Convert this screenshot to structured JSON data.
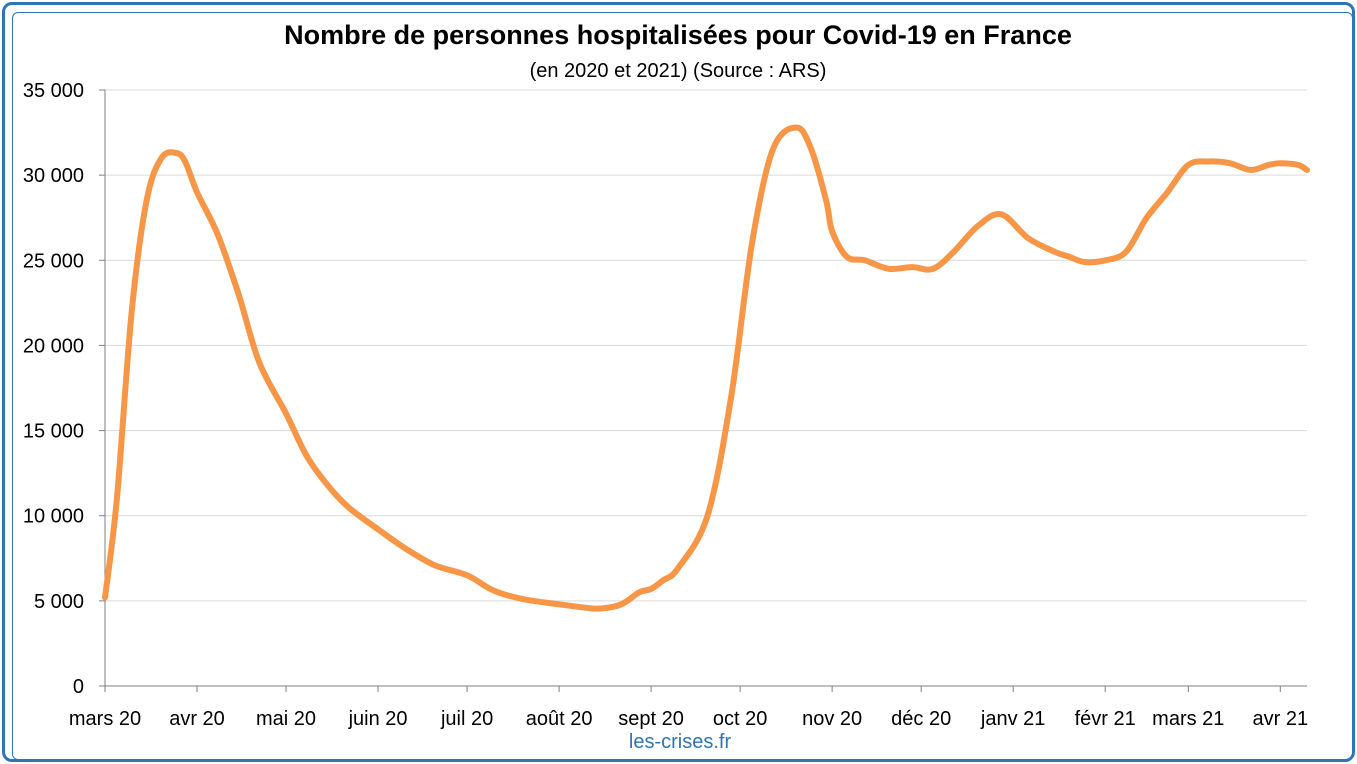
{
  "chart_data": {
    "type": "line",
    "title": "Nombre de personnes hospitalisées pour Covid-19 en France",
    "subtitle": "(en 2020 et 2021) (Source : ARS)",
    "xlabel": "",
    "ylabel": "",
    "ylim": [
      0,
      35000
    ],
    "xlim": [
      "2020-03-01",
      "2021-04-10"
    ],
    "y_ticks": [
      0,
      5000,
      10000,
      15000,
      20000,
      25000,
      30000,
      35000
    ],
    "y_tick_labels": [
      "0",
      "5 000",
      "10 000",
      "15 000",
      "20 000",
      "25 000",
      "30 000",
      "35 000"
    ],
    "x_ticks": [
      "2020-03-01",
      "2020-04-01",
      "2020-05-01",
      "2020-06-01",
      "2020-07-01",
      "2020-08-01",
      "2020-09-01",
      "2020-10-01",
      "2020-11-01",
      "2020-12-01",
      "2021-01-01",
      "2021-02-01",
      "2021-03-01",
      "2021-04-01"
    ],
    "x_tick_labels": [
      "mars 20",
      "avr 20",
      "mai 20",
      "juin 20",
      "juil 20",
      "août 20",
      "sept 20",
      "oct 20",
      "nov 20",
      "déc 20",
      "janv 21",
      "févr 21",
      "mars 21",
      "avr 21"
    ],
    "grid": true,
    "legend": "none",
    "line_color": "#f79646",
    "series": [
      {
        "x": [
          "2020-03-01",
          "2020-03-05",
          "2020-03-10",
          "2020-03-15",
          "2020-03-20",
          "2020-03-25",
          "2020-03-28",
          "2020-04-01",
          "2020-04-08",
          "2020-04-15",
          "2020-04-22",
          "2020-05-01",
          "2020-05-08",
          "2020-05-15",
          "2020-05-22",
          "2020-06-01",
          "2020-06-10",
          "2020-06-20",
          "2020-07-01",
          "2020-07-10",
          "2020-07-20",
          "2020-08-01",
          "2020-08-10",
          "2020-08-15",
          "2020-08-22",
          "2020-08-28",
          "2020-09-01",
          "2020-09-05",
          "2020-09-10",
          "2020-09-20",
          "2020-09-28",
          "2020-10-05",
          "2020-10-12",
          "2020-10-20",
          "2020-10-25",
          "2020-10-30",
          "2020-11-01",
          "2020-11-06",
          "2020-11-12",
          "2020-11-20",
          "2020-11-28",
          "2020-12-05",
          "2020-12-12",
          "2020-12-20",
          "2020-12-28",
          "2021-01-06",
          "2021-01-15",
          "2021-01-20",
          "2021-01-25",
          "2021-02-01",
          "2021-02-08",
          "2021-02-15",
          "2021-02-22",
          "2021-03-01",
          "2021-03-08",
          "2021-03-15",
          "2021-03-22",
          "2021-03-28",
          "2021-04-01",
          "2021-04-07",
          "2021-04-10"
        ],
        "y": [
          5200,
          11000,
          22000,
          28500,
          31000,
          31300,
          30800,
          29000,
          26500,
          23000,
          19000,
          16000,
          13500,
          11800,
          10500,
          9200,
          8100,
          7100,
          6500,
          5600,
          5100,
          4800,
          4600,
          4550,
          4800,
          5500,
          5700,
          6200,
          6900,
          10000,
          17000,
          26000,
          31500,
          32800,
          31500,
          28500,
          26700,
          25200,
          25000,
          24500,
          24600,
          24500,
          25500,
          27000,
          27700,
          26300,
          25500,
          25200,
          24900,
          25000,
          25500,
          27500,
          29000,
          30600,
          30800,
          30700,
          30300,
          30600,
          30700,
          30600,
          30300
        ]
      }
    ]
  },
  "footer": {
    "source": "les-crises.fr"
  }
}
